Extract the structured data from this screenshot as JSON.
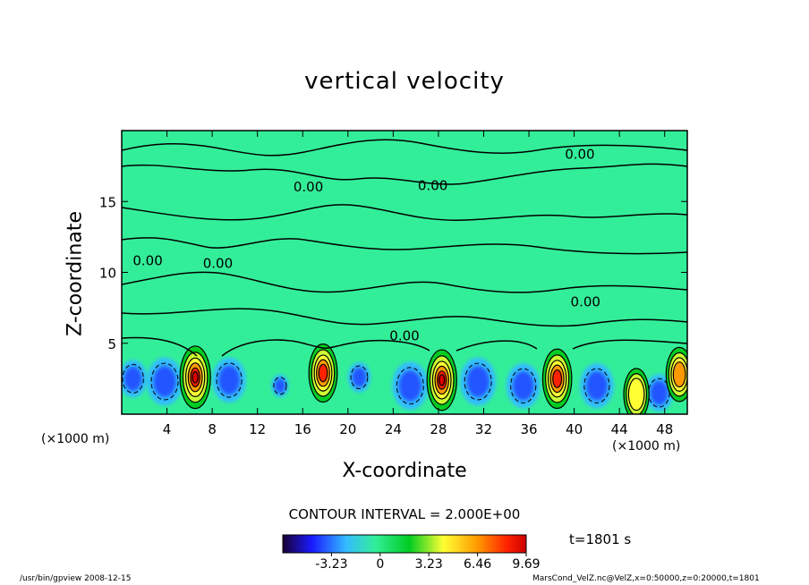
{
  "page": {
    "title": "vertical velocity"
  },
  "chart_data": {
    "type": "heatmap",
    "title": "vertical velocity",
    "xlabel": "X-coordinate",
    "ylabel": "Z-coordinate",
    "x_unit": "(×1000 m)",
    "xlim": [
      0,
      50
    ],
    "ylim": [
      0,
      20
    ],
    "x_ticks": [
      4,
      8,
      12,
      16,
      20,
      24,
      28,
      32,
      36,
      40,
      44,
      48
    ],
    "y_ticks": [
      5,
      10,
      15
    ],
    "contour_interval": "CONTOUR INTERVAL = 2.000E+00",
    "contour_labels": [
      {
        "x": 40.5,
        "z": 18.0,
        "text": "0.00"
      },
      {
        "x": 16.5,
        "z": 15.7,
        "text": "0.00"
      },
      {
        "x": 27.5,
        "z": 15.8,
        "text": "0.00"
      },
      {
        "x": 2.3,
        "z": 10.5,
        "text": "0.00"
      },
      {
        "x": 8.5,
        "z": 10.3,
        "text": "0.00"
      },
      {
        "x": 41.0,
        "z": 7.6,
        "text": "0.00"
      },
      {
        "x": 25.0,
        "z": 5.2,
        "text": "0.00"
      }
    ],
    "updrafts": [
      {
        "x": 6.5,
        "z": 2.6,
        "w": 9.69
      },
      {
        "x": 17.8,
        "z": 2.9,
        "w": 8.0
      },
      {
        "x": 28.3,
        "z": 2.4,
        "w": 9.0
      },
      {
        "x": 38.5,
        "z": 2.5,
        "w": 8.5
      },
      {
        "x": 45.5,
        "z": 1.4,
        "w": 5.5
      },
      {
        "x": 49.3,
        "z": 2.8,
        "w": 6.5
      }
    ],
    "downdrafts": [
      {
        "x": 1.0,
        "z": 2.5,
        "w": -2.5
      },
      {
        "x": 3.8,
        "z": 2.3,
        "w": -3.2
      },
      {
        "x": 9.5,
        "z": 2.4,
        "w": -3.0
      },
      {
        "x": 14.0,
        "z": 2.0,
        "w": -1.5
      },
      {
        "x": 21.0,
        "z": 2.6,
        "w": -2.0
      },
      {
        "x": 25.5,
        "z": 2.0,
        "w": -3.2
      },
      {
        "x": 31.5,
        "z": 2.3,
        "w": -3.2
      },
      {
        "x": 35.5,
        "z": 2.0,
        "w": -3.0
      },
      {
        "x": 42.0,
        "z": 2.0,
        "w": -3.0
      },
      {
        "x": 47.5,
        "z": 1.5,
        "w": -2.5
      }
    ],
    "colorbar": {
      "ticks": [
        "-3.23",
        "0",
        "3.23",
        "6.46",
        "9.69"
      ],
      "min": -6.46,
      "max": 9.69
    }
  },
  "annotations": {
    "time": "t=1801 s",
    "footer_left": "/usr/bin/gpview   2008-12-15",
    "footer_right": "MarsCond_VelZ.nc@VelZ,x=0:50000,z=0:20000,t=1801"
  },
  "colors": {
    "background": "#33ee99",
    "neutral": "#33ee99",
    "line": "#000000"
  }
}
